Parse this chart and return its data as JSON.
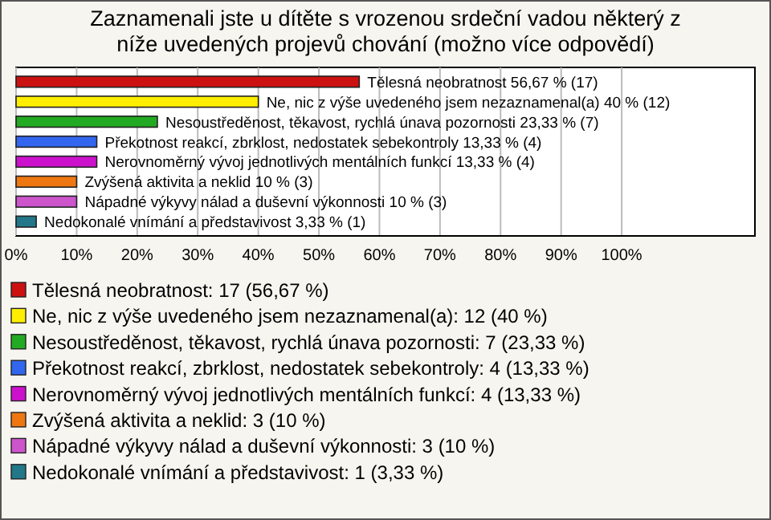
{
  "chart_data": {
    "type": "bar",
    "orientation": "horizontal",
    "stacked": true,
    "title": "Zaznamenali jste u dítěte s vrozenou srdeční vadou některý z níže uvedených projevů chování (možno více odpovědí)",
    "categories": [
      null,
      null,
      null,
      null,
      null,
      null,
      null,
      null
    ],
    "series": [
      {
        "name": "Tělesná neobratnost: 17 (56,67 %)",
        "color": "#cc1111",
        "values": [
          56.67,
          null,
          null,
          null,
          null,
          null,
          null,
          null
        ],
        "value_labels": [
          "Tělesná neobratnost 56,67 % (17)",
          null,
          null,
          null,
          null,
          null,
          null,
          null
        ]
      },
      {
        "name": "Ne, nic z výše uvedeného jsem nezaznamenal(a): 12 (40 %)",
        "color": "#ffee00",
        "values": [
          null,
          40,
          null,
          null,
          null,
          null,
          null,
          null
        ],
        "value_labels": [
          null,
          "Ne, nic z výše uvedeného jsem nezaznamenal(a) 40 % (12)",
          null,
          null,
          null,
          null,
          null,
          null
        ]
      },
      {
        "name": "Nesoustředěnost, těkavost, rychlá únava pozornosti: 7 (23,33 %)",
        "color": "#22aa22",
        "values": [
          null,
          null,
          23.33,
          null,
          null,
          null,
          null,
          null
        ],
        "value_labels": [
          null,
          null,
          "Nesoustředěnost, těkavost, rychlá únava pozornosti 23,33 % (7)",
          null,
          null,
          null,
          null,
          null
        ]
      },
      {
        "name": "Překotnost reakcí, zbrklost, nedostatek sebekontroly: 4 (13,33 %)",
        "color": "#3366ee",
        "values": [
          null,
          null,
          null,
          13.33,
          null,
          null,
          null,
          null
        ],
        "value_labels": [
          null,
          null,
          null,
          "Překotnost reakcí, zbrklost, nedostatek sebekontroly 13,33 % (4)",
          null,
          null,
          null,
          null
        ]
      },
      {
        "name": "Nerovnoměrný vývoj jednotlivých mentálních funkcí: 4 (13,33 %)",
        "color": "#cc11cc",
        "values": [
          null,
          null,
          null,
          null,
          13.33,
          null,
          null,
          null
        ],
        "value_labels": [
          null,
          null,
          null,
          null,
          "Nerovnoměrný vývoj jednotlivých mentálních funkcí 13,33 % (4)",
          null,
          null,
          null
        ]
      },
      {
        "name": "Zvýšená aktivita a neklid: 3 (10 %)",
        "color": "#ee7711",
        "values": [
          null,
          null,
          null,
          null,
          null,
          10,
          null,
          null
        ],
        "value_labels": [
          null,
          null,
          null,
          null,
          null,
          "Zvýšená aktivita a neklid 10 % (3)",
          null,
          null
        ]
      },
      {
        "name": "Nápadné výkyvy nálad a duševní výkonnosti: 3 (10 %)",
        "color": "#cc55cc",
        "values": [
          null,
          null,
          null,
          null,
          null,
          null,
          10,
          null
        ],
        "value_labels": [
          null,
          null,
          null,
          null,
          null,
          null,
          "Nápadné výkyvy nálad a duševní výkonnosti 10 % (3)",
          null
        ]
      },
      {
        "name": "Nedokonalé vnímání a představivost: 1 (3,33 %)",
        "color": "#227788",
        "values": [
          null,
          null,
          null,
          null,
          null,
          null,
          null,
          3.33
        ],
        "value_labels": [
          null,
          null,
          null,
          null,
          null,
          null,
          null,
          "Nedokonalé vnímání a představivost 3,33 % (1)"
        ]
      }
    ],
    "xlim": [
      0,
      122
    ],
    "xticks": [
      {
        "value": 0,
        "label": "0%"
      },
      {
        "value": 10,
        "label": "10%"
      },
      {
        "value": 20,
        "label": "20%"
      },
      {
        "value": 30,
        "label": "30%"
      },
      {
        "value": 40,
        "label": "40%"
      },
      {
        "value": 50,
        "label": "50%"
      },
      {
        "value": 60,
        "label": "60%"
      },
      {
        "value": 70,
        "label": "70%"
      },
      {
        "value": 80,
        "label": "80%"
      },
      {
        "value": 90,
        "label": "90%"
      },
      {
        "value": 100,
        "label": "100%"
      }
    ],
    "grid": "x",
    "legend": "bottom",
    "tick_labels": "x"
  }
}
